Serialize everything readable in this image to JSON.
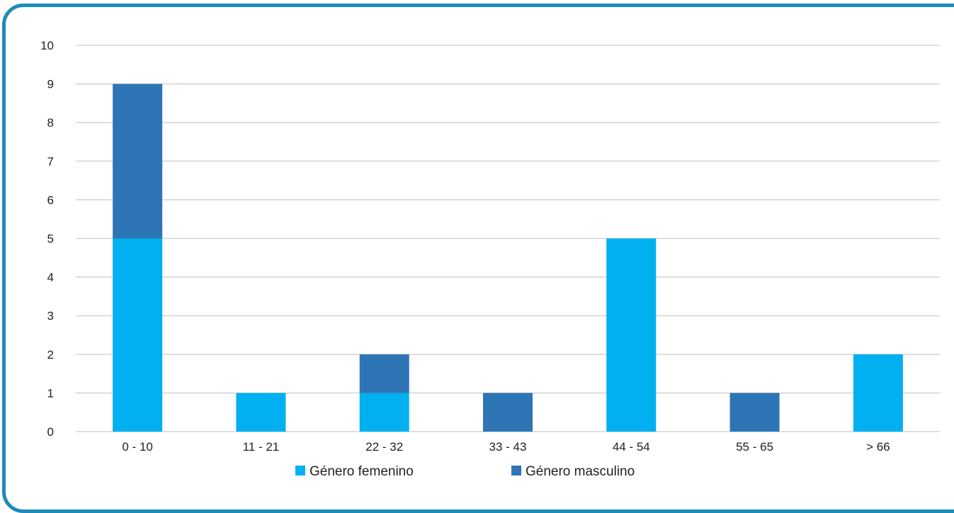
{
  "chart_data": {
    "type": "bar",
    "stacked": true,
    "categories": [
      "0 - 10",
      "11 - 21",
      "22 - 32",
      "33 - 43",
      "44 - 54",
      "55 - 65",
      "> 66"
    ],
    "series": [
      {
        "name": "Género femenino",
        "values": [
          5,
          1,
          1,
          0,
          5,
          0,
          2
        ],
        "color": "#00b0f0"
      },
      {
        "name": "Género masculino",
        "values": [
          4,
          0,
          1,
          1,
          0,
          1,
          0
        ],
        "color": "#2e75b6"
      }
    ],
    "ylim": [
      0,
      10
    ],
    "yticks": [
      "0",
      "1",
      "2",
      "3",
      "4",
      "5",
      "6",
      "7",
      "8",
      "9",
      "10"
    ],
    "grid": true,
    "legend_position": "bottom",
    "title": "",
    "xlabel": "",
    "ylabel": ""
  },
  "colors": {
    "frame": "#1f8bb8",
    "grid": "#bfbfbf",
    "text": "#222222"
  }
}
